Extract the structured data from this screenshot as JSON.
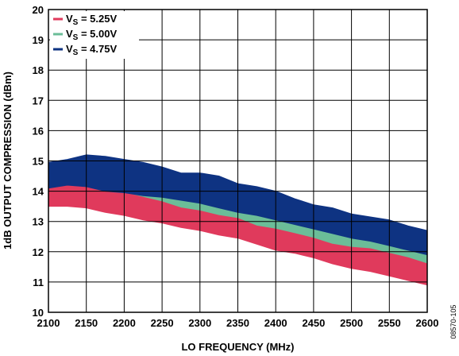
{
  "chart_data": {
    "type": "area",
    "title": "",
    "xlabel": "LO FREQUENCY (MHz)",
    "ylabel": "1dB OUTPUT COMPRESSION (dBm)",
    "xlim": [
      2100,
      2600
    ],
    "ylim": [
      10,
      20
    ],
    "x_ticks": [
      "2100",
      "2150",
      "2200",
      "2250",
      "2300",
      "2350",
      "2400",
      "2450",
      "2500",
      "2550",
      "2600"
    ],
    "y_ticks": [
      "10",
      "11",
      "12",
      "13",
      "14",
      "15",
      "16",
      "17",
      "18",
      "19",
      "20"
    ],
    "grid": true,
    "legend_position": "top-left",
    "x": [
      2100,
      2125,
      2150,
      2175,
      2200,
      2225,
      2250,
      2275,
      2300,
      2325,
      2350,
      2375,
      2400,
      2425,
      2450,
      2475,
      2500,
      2525,
      2550,
      2575,
      2600
    ],
    "series": [
      {
        "name": "5.00V",
        "label_prefix": "V",
        "label_sub": "S",
        "label_eq": " = ",
        "color": "#6bbd98",
        "upper": [
          14.3,
          14.3,
          14.25,
          14.1,
          14.05,
          13.95,
          13.85,
          13.75,
          13.6,
          13.5,
          13.35,
          13.25,
          13.15,
          13.05,
          12.9,
          12.8,
          12.65,
          12.55,
          12.45,
          12.25,
          12.05
        ],
        "lower": [
          13.7,
          13.75,
          13.7,
          13.55,
          13.45,
          13.35,
          13.25,
          13.1,
          13.0,
          12.85,
          12.7,
          12.55,
          12.45,
          12.35,
          12.2,
          12.05,
          11.9,
          11.8,
          11.65,
          11.45,
          11.25
        ]
      },
      {
        "name": "5.25V",
        "label_prefix": "V",
        "label_sub": "S",
        "label_eq": " = ",
        "color": "#e03a5c",
        "upper": [
          14.2,
          14.25,
          14.3,
          14.05,
          13.95,
          13.8,
          13.65,
          13.45,
          13.35,
          13.2,
          13.1,
          12.85,
          12.75,
          12.6,
          12.45,
          12.25,
          12.15,
          12.1,
          11.95,
          11.8,
          11.6
        ],
        "lower": [
          13.5,
          13.5,
          13.45,
          13.3,
          13.2,
          13.05,
          12.95,
          12.8,
          12.7,
          12.55,
          12.45,
          12.25,
          12.05,
          11.95,
          11.8,
          11.6,
          11.45,
          11.35,
          11.2,
          11.05,
          10.9
        ]
      },
      {
        "name": "4.75V",
        "label_prefix": "V",
        "label_sub": "S",
        "label_eq": " = ",
        "color": "#0e3382",
        "upper": [
          14.95,
          15.05,
          15.2,
          15.15,
          15.05,
          14.95,
          14.8,
          14.6,
          14.6,
          14.5,
          14.25,
          14.15,
          14.0,
          13.75,
          13.55,
          13.45,
          13.25,
          13.15,
          13.05,
          12.85,
          12.7
        ],
        "lower": [
          14.1,
          14.2,
          14.15,
          14.0,
          13.95,
          13.85,
          13.8,
          13.7,
          13.6,
          13.45,
          13.3,
          13.2,
          13.05,
          12.9,
          12.75,
          12.6,
          12.45,
          12.35,
          12.2,
          12.05,
          11.9
        ]
      }
    ],
    "legend_order": [
      1,
      0,
      2
    ],
    "figure_code": "08570-105"
  }
}
